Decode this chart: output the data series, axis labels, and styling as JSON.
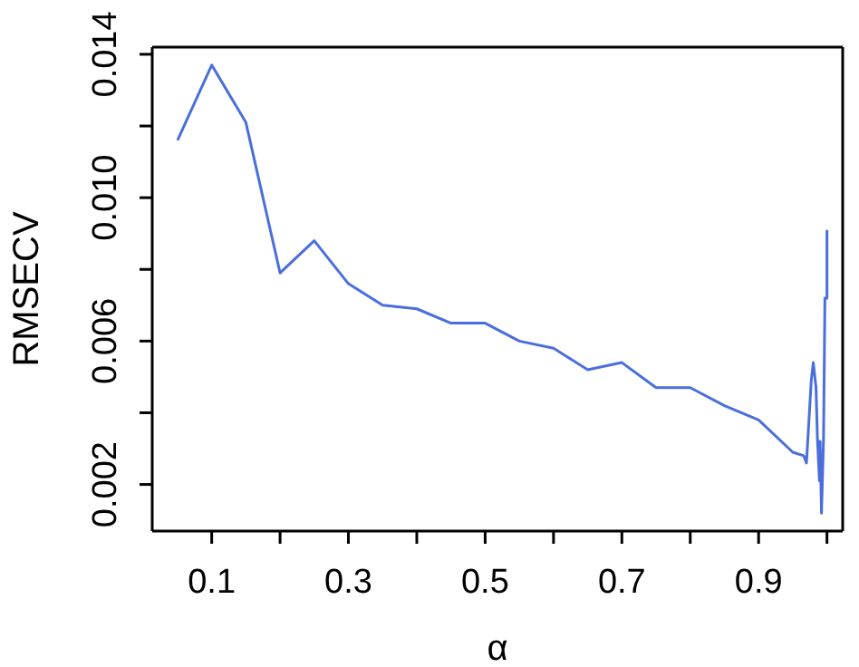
{
  "chart_data": {
    "type": "line",
    "xlabel": "α",
    "ylabel": "RMSECV",
    "x": [
      0.05,
      0.1,
      0.15,
      0.2,
      0.25,
      0.3,
      0.35,
      0.4,
      0.45,
      0.5,
      0.55,
      0.6,
      0.65,
      0.7,
      0.75,
      0.8,
      0.85,
      0.9,
      0.95,
      0.966,
      0.97,
      0.974,
      0.977,
      0.98,
      0.984,
      0.986,
      0.989,
      0.99,
      0.992,
      0.995,
      0.997,
      1.0,
      1.0
    ],
    "series": [
      {
        "color": "#4a6fdc",
        "values": [
          0.0116,
          0.0137,
          0.0121,
          0.0079,
          0.0088,
          0.0076,
          0.007,
          0.0069,
          0.0065,
          0.0065,
          0.006,
          0.0058,
          0.0052,
          0.0054,
          0.0047,
          0.0047,
          0.0042,
          0.0038,
          0.0029,
          0.0028,
          0.0026,
          0.0039,
          0.0049,
          0.0054,
          0.0047,
          0.0033,
          0.0021,
          0.0032,
          0.0012,
          0.0033,
          0.0072,
          0.0072,
          0.0091
        ]
      }
    ],
    "xlim": [
      0.013,
      1.023
    ],
    "ylim": [
      0.0007,
      0.0142
    ],
    "xticks": [
      0.1,
      {
        "value": 0.2,
        "label": null
      },
      0.3,
      {
        "value": 0.4,
        "label": null
      },
      0.5,
      {
        "value": 0.6,
        "label": null
      },
      0.7,
      {
        "value": 0.8,
        "label": null
      },
      0.9,
      {
        "value": 1.0,
        "label": null
      }
    ],
    "yticks": [
      0.002,
      {
        "value": 0.004,
        "label": null
      },
      0.006,
      {
        "value": 0.008,
        "label": null
      },
      {
        "value": 0.01,
        "label": "0.010"
      },
      {
        "value": 0.012,
        "label": null
      },
      0.014
    ],
    "marker": "none",
    "line_style": "solid"
  }
}
